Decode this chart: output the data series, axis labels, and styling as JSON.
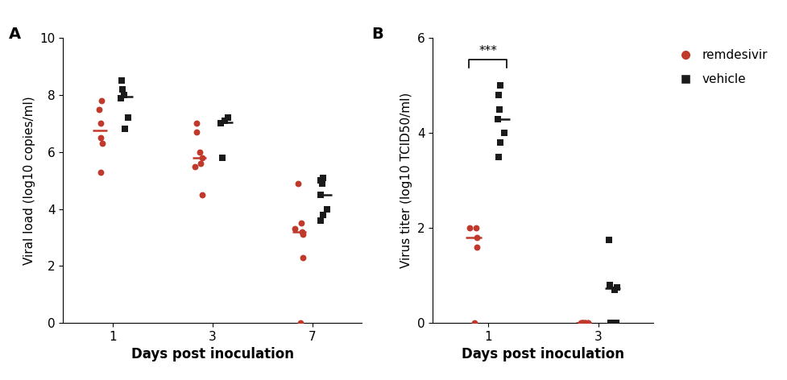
{
  "panel_A": {
    "title": "A",
    "ylabel": "Viral load (log10 copies/ml)",
    "xlabel": "Days post inoculation",
    "ylim": [
      0,
      10
    ],
    "yticks": [
      0,
      2,
      4,
      6,
      8,
      10
    ],
    "xticklabels": [
      "1",
      "3",
      "7"
    ],
    "remdesivir": {
      "day1": [
        5.3,
        6.3,
        6.5,
        7.0,
        7.5,
        7.8
      ],
      "day3": [
        4.5,
        5.5,
        5.6,
        5.8,
        6.0,
        6.7,
        7.0
      ],
      "day7": [
        0.0,
        2.3,
        3.1,
        3.2,
        3.3,
        3.5,
        4.9
      ]
    },
    "vehicle": {
      "day1": [
        6.8,
        7.2,
        7.9,
        8.0,
        8.2,
        8.5
      ],
      "day3": [
        5.8,
        7.0,
        7.1,
        7.2
      ],
      "day7": [
        3.6,
        3.8,
        4.0,
        4.5,
        4.9,
        5.0,
        5.1
      ]
    }
  },
  "panel_B": {
    "title": "B",
    "ylabel": "Virus titer (log10 TCID50/ml)",
    "xlabel": "Days post inoculation",
    "ylim": [
      0,
      6
    ],
    "yticks": [
      0,
      2,
      4,
      6
    ],
    "xticklabels": [
      "1",
      "3"
    ],
    "remdesivir": {
      "day1": [
        0.0,
        1.6,
        1.8,
        2.0,
        2.0
      ],
      "day3": [
        0.0,
        0.0,
        0.0,
        0.0,
        0.0,
        0.0,
        0.0,
        0.0,
        0.0,
        0.0
      ]
    },
    "vehicle": {
      "day1": [
        3.5,
        3.8,
        4.0,
        4.3,
        4.5,
        4.8,
        5.0
      ],
      "day3": [
        0.0,
        0.0,
        0.7,
        0.75,
        0.8,
        1.75
      ]
    },
    "sig_label": "***"
  },
  "colors": {
    "remdesivir": "#c0392b",
    "vehicle": "#1a1a1a"
  },
  "legend": {
    "remdesivir": "remdesivir",
    "vehicle": "vehicle"
  }
}
